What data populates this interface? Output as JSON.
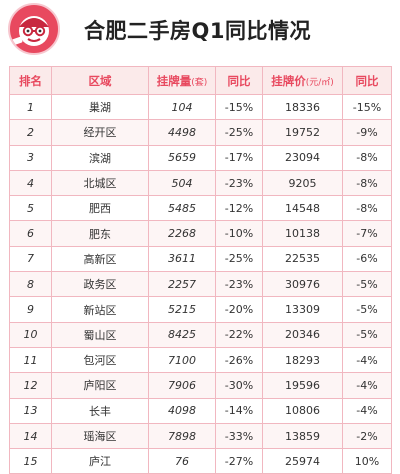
{
  "title": "合肥二手房Q1同比情况",
  "logo": {
    "icon": "cartoon-mascot-logo",
    "accent": "#e8495f"
  },
  "table": {
    "headers": {
      "rank": "排名",
      "district": "区域",
      "listing": "挂牌量",
      "listing_unit": "(套)",
      "listing_yoy": "同比",
      "price": "挂牌价",
      "price_unit": "(元/㎡)",
      "price_yoy": "同比"
    },
    "rows": [
      {
        "rank": "1",
        "district": "巢湖",
        "listing": "104",
        "listing_yoy": "-15%",
        "price": "18336",
        "price_yoy": "-15%"
      },
      {
        "rank": "2",
        "district": "经开区",
        "listing": "4498",
        "listing_yoy": "-25%",
        "price": "19752",
        "price_yoy": "-9%"
      },
      {
        "rank": "3",
        "district": "滨湖",
        "listing": "5659",
        "listing_yoy": "-17%",
        "price": "23094",
        "price_yoy": "-8%"
      },
      {
        "rank": "4",
        "district": "北城区",
        "listing": "504",
        "listing_yoy": "-23%",
        "price": "9205",
        "price_yoy": "-8%"
      },
      {
        "rank": "5",
        "district": "肥西",
        "listing": "5485",
        "listing_yoy": "-12%",
        "price": "14548",
        "price_yoy": "-8%"
      },
      {
        "rank": "6",
        "district": "肥东",
        "listing": "2268",
        "listing_yoy": "-10%",
        "price": "10138",
        "price_yoy": "-7%"
      },
      {
        "rank": "7",
        "district": "高新区",
        "listing": "3611",
        "listing_yoy": "-25%",
        "price": "22535",
        "price_yoy": "-6%"
      },
      {
        "rank": "8",
        "district": "政务区",
        "listing": "2257",
        "listing_yoy": "-23%",
        "price": "30976",
        "price_yoy": "-5%"
      },
      {
        "rank": "9",
        "district": "新站区",
        "listing": "5215",
        "listing_yoy": "-20%",
        "price": "13309",
        "price_yoy": "-5%"
      },
      {
        "rank": "10",
        "district": "蜀山区",
        "listing": "8425",
        "listing_yoy": "-22%",
        "price": "20346",
        "price_yoy": "-5%"
      },
      {
        "rank": "11",
        "district": "包河区",
        "listing": "7100",
        "listing_yoy": "-26%",
        "price": "18293",
        "price_yoy": "-4%"
      },
      {
        "rank": "12",
        "district": "庐阳区",
        "listing": "7906",
        "listing_yoy": "-30%",
        "price": "19596",
        "price_yoy": "-4%"
      },
      {
        "rank": "13",
        "district": "长丰",
        "listing": "4098",
        "listing_yoy": "-14%",
        "price": "10806",
        "price_yoy": "-4%"
      },
      {
        "rank": "14",
        "district": "瑶海区",
        "listing": "7898",
        "listing_yoy": "-33%",
        "price": "13859",
        "price_yoy": "-2%"
      },
      {
        "rank": "15",
        "district": "庐江",
        "listing": "76",
        "listing_yoy": "-27%",
        "price": "25974",
        "price_yoy": "10%"
      }
    ]
  }
}
